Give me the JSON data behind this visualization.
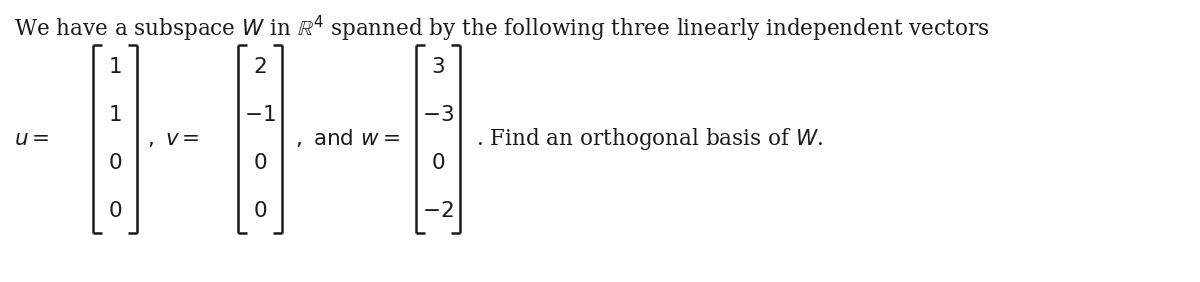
{
  "u_vec": [
    "1",
    "1",
    "0",
    "0"
  ],
  "v_vec": [
    "2",
    "-1",
    "0",
    "0"
  ],
  "w_vec": [
    "3",
    "-3",
    "0",
    "-2"
  ],
  "bg_color": "#ffffff",
  "text_color": "#1a1a1a",
  "title": "We have a subspace $W$ in $\\mathbb{R}^4$ spanned by the following three linearly independent vectors",
  "find_text": ". Find an orthogonal basis of $W$.",
  "font_size": 15.5,
  "vec_font_size": 15.5
}
